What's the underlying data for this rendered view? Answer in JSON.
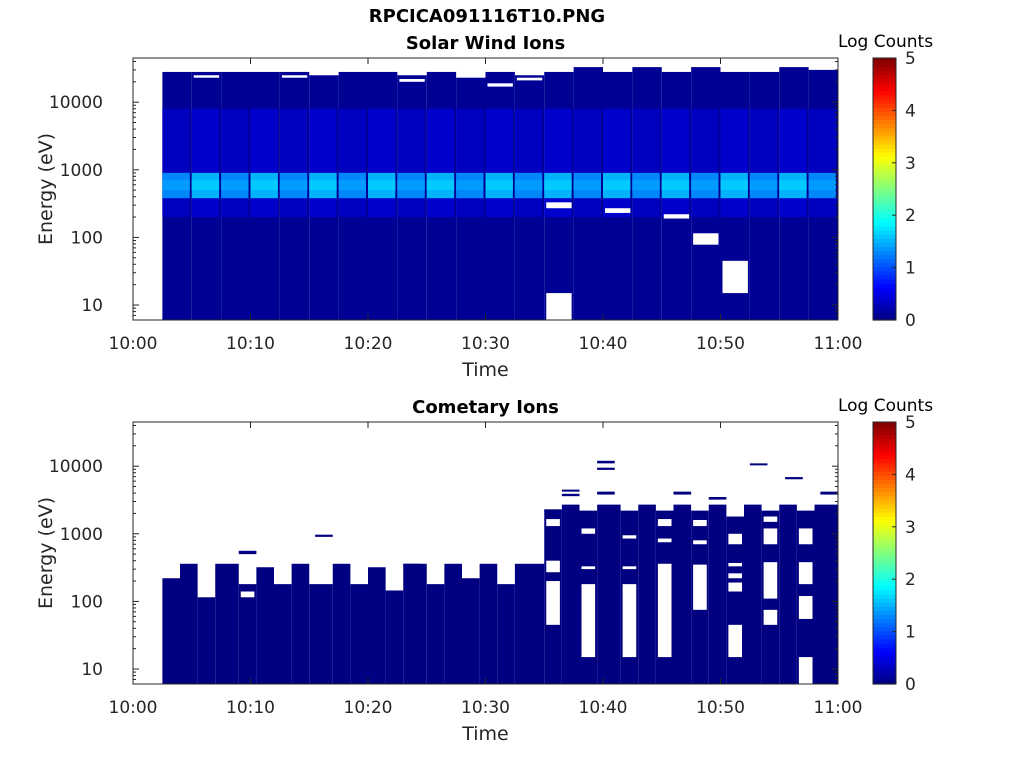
{
  "figure": {
    "title": "RPCICA091116T10.PNG"
  },
  "chart_data": [
    {
      "type": "heatmap",
      "title": "Solar Wind Ions",
      "xlabel": "Time",
      "ylabel": "Energy (eV)",
      "y_scale": "log",
      "x_ticks": [
        "10:00",
        "10:10",
        "10:20",
        "10:30",
        "10:40",
        "10:50",
        "11:00"
      ],
      "y_ticks": [
        "10",
        "100",
        "1000",
        "10000"
      ],
      "xlim": [
        "10:00",
        "11:00"
      ],
      "ylim": [
        6,
        45000
      ],
      "colorbar": {
        "label": "Log Counts",
        "min": 0,
        "max": 5,
        "ticks": [
          "0",
          "1",
          "2",
          "3",
          "4",
          "5"
        ],
        "colormap": "jet"
      },
      "data_time_range": [
        "10:02:30",
        "11:00"
      ],
      "dominant_level": 0.1,
      "columns": [
        {
          "t": [
            "10:02:30",
            "10:05:00"
          ],
          "top": 28000,
          "gaps": []
        },
        {
          "t": [
            "10:05:00",
            "10:07:30"
          ],
          "top": 28000,
          "gaps": [
            [
              23000,
              25000
            ]
          ]
        },
        {
          "t": [
            "10:07:30",
            "10:10:00"
          ],
          "top": 28000,
          "gaps": []
        },
        {
          "t": [
            "10:10:00",
            "10:12:30"
          ],
          "top": 28000,
          "gaps": []
        },
        {
          "t": [
            "10:12:30",
            "10:15:00"
          ],
          "top": 28000,
          "gaps": [
            [
              23000,
              25000
            ]
          ]
        },
        {
          "t": [
            "10:15:00",
            "10:17:30"
          ],
          "top": 25000,
          "gaps": []
        },
        {
          "t": [
            "10:17:30",
            "10:20:00"
          ],
          "top": 28000,
          "gaps": []
        },
        {
          "t": [
            "10:20:00",
            "10:22:30"
          ],
          "top": 28000,
          "gaps": []
        },
        {
          "t": [
            "10:22:30",
            "10:25:00"
          ],
          "top": 25000,
          "gaps": [
            [
              20000,
              22000
            ]
          ]
        },
        {
          "t": [
            "10:25:00",
            "10:27:30"
          ],
          "top": 28000,
          "gaps": []
        },
        {
          "t": [
            "10:27:30",
            "10:30:00"
          ],
          "top": 23000,
          "gaps": []
        },
        {
          "t": [
            "10:30:00",
            "10:32:30"
          ],
          "top": 28000,
          "gaps": [
            [
              17000,
              19000
            ]
          ]
        },
        {
          "t": [
            "10:32:30",
            "10:35:00"
          ],
          "top": 25000,
          "gaps": [
            [
              21000,
              23000
            ]
          ]
        },
        {
          "t": [
            "10:35:00",
            "10:37:30"
          ],
          "top": 28000,
          "gaps": [
            [
              270,
              330
            ],
            [
              6,
              15
            ]
          ]
        },
        {
          "t": [
            "10:37:30",
            "10:40:00"
          ],
          "top": 33000,
          "gaps": []
        },
        {
          "t": [
            "10:40:00",
            "10:42:30"
          ],
          "top": 28000,
          "gaps": [
            [
              230,
              270
            ]
          ]
        },
        {
          "t": [
            "10:42:30",
            "10:45:00"
          ],
          "top": 33000,
          "gaps": []
        },
        {
          "t": [
            "10:45:00",
            "10:47:30"
          ],
          "top": 28000,
          "gaps": [
            [
              190,
              220
            ]
          ]
        },
        {
          "t": [
            "10:47:30",
            "10:50:00"
          ],
          "top": 33000,
          "gaps": [
            [
              78,
              115
            ]
          ]
        },
        {
          "t": [
            "10:50:00",
            "10:52:30"
          ],
          "top": 28000,
          "gaps": [
            [
              15,
              45
            ]
          ]
        },
        {
          "t": [
            "10:52:30",
            "10:55:00"
          ],
          "top": 28000,
          "gaps": []
        },
        {
          "t": [
            "10:55:00",
            "10:57:30"
          ],
          "top": 33000,
          "gaps": []
        },
        {
          "t": [
            "10:57:30",
            "11:00:00"
          ],
          "top": 30000,
          "gaps": []
        }
      ],
      "bands": [
        {
          "e_range": [
            380,
            900
          ],
          "level": 1.6
        },
        {
          "e_range": [
            500,
            700
          ],
          "level": 2.0
        },
        {
          "e_range": [
            200,
            8000
          ],
          "level": 0.4
        }
      ]
    },
    {
      "type": "heatmap",
      "title": "Cometary Ions",
      "xlabel": "Time",
      "ylabel": "Energy (eV)",
      "y_scale": "log",
      "x_ticks": [
        "10:00",
        "10:10",
        "10:20",
        "10:30",
        "10:40",
        "10:50",
        "11:00"
      ],
      "y_ticks": [
        "10",
        "100",
        "1000",
        "10000"
      ],
      "xlim": [
        "10:00",
        "11:00"
      ],
      "ylim": [
        6,
        45000
      ],
      "colorbar": {
        "label": "Log Counts",
        "min": 0,
        "max": 5,
        "ticks": [
          "0",
          "1",
          "2",
          "3",
          "4",
          "5"
        ],
        "colormap": "jet"
      },
      "data_time_range": [
        "10:02:30",
        "11:00"
      ],
      "dominant_level": 0.0,
      "columns": [
        {
          "t": [
            "10:02:30",
            "10:04:00"
          ],
          "top": 220,
          "gaps": []
        },
        {
          "t": [
            "10:04:00",
            "10:05:30"
          ],
          "top": 360,
          "gaps": []
        },
        {
          "t": [
            "10:05:30",
            "10:07:00"
          ],
          "top": 115,
          "gaps": []
        },
        {
          "t": [
            "10:07:00",
            "10:09:00"
          ],
          "top": 360,
          "gaps": []
        },
        {
          "t": [
            "10:09:00",
            "10:10:30"
          ],
          "top": 180,
          "gaps": [
            [
              115,
              140
            ]
          ]
        },
        {
          "t": [
            "10:10:30",
            "10:12:00"
          ],
          "top": 320,
          "gaps": []
        },
        {
          "t": [
            "10:12:00",
            "10:13:30"
          ],
          "top": 180,
          "gaps": []
        },
        {
          "t": [
            "10:13:30",
            "10:15:00"
          ],
          "top": 360,
          "gaps": []
        },
        {
          "t": [
            "10:15:00",
            "10:17:00"
          ],
          "top": 180,
          "gaps": []
        },
        {
          "t": [
            "10:17:00",
            "10:18:30"
          ],
          "top": 360,
          "gaps": []
        },
        {
          "t": [
            "10:18:30",
            "10:20:00"
          ],
          "top": 180,
          "gaps": []
        },
        {
          "t": [
            "10:20:00",
            "10:21:30"
          ],
          "top": 320,
          "gaps": []
        },
        {
          "t": [
            "10:21:30",
            "10:23:00"
          ],
          "top": 145,
          "gaps": []
        },
        {
          "t": [
            "10:23:00",
            "10:25:00"
          ],
          "top": 360,
          "gaps": []
        },
        {
          "t": [
            "10:25:00",
            "10:26:30"
          ],
          "top": 180,
          "gaps": []
        },
        {
          "t": [
            "10:26:30",
            "10:28:00"
          ],
          "top": 360,
          "gaps": []
        },
        {
          "t": [
            "10:28:00",
            "10:29:30"
          ],
          "top": 220,
          "gaps": []
        },
        {
          "t": [
            "10:29:30",
            "10:31:00"
          ],
          "top": 360,
          "gaps": []
        },
        {
          "t": [
            "10:31:00",
            "10:32:30"
          ],
          "top": 180,
          "gaps": []
        },
        {
          "t": [
            "10:32:30",
            "10:35:00"
          ],
          "top": 360,
          "gaps": []
        },
        {
          "t": [
            "10:35:00",
            "10:36:30"
          ],
          "top": 2200,
          "gaps": [
            [
              45,
              200
            ],
            [
              270,
              400
            ],
            [
              1300,
              1650
            ]
          ]
        },
        {
          "t": [
            "10:36:30",
            "10:38:00"
          ],
          "top": 2700,
          "gaps": []
        },
        {
          "t": [
            "10:38:00",
            "10:39:30"
          ],
          "top": 2200,
          "gaps": [
            [
              15,
              180
            ],
            [
              300,
              330
            ],
            [
              1000,
              1200
            ]
          ]
        },
        {
          "t": [
            "10:39:30",
            "10:41:30"
          ],
          "top": 2700,
          "gaps": []
        },
        {
          "t": [
            "10:41:30",
            "10:43:00"
          ],
          "top": 2200,
          "gaps": [
            [
              15,
              180
            ],
            [
              300,
              330
            ],
            [
              850,
              950
            ]
          ]
        },
        {
          "t": [
            "10:43:00",
            "10:44:30"
          ],
          "top": 2700,
          "gaps": []
        },
        {
          "t": [
            "10:44:30",
            "10:46:00"
          ],
          "top": 2200,
          "gaps": [
            [
              15,
              360
            ],
            [
              750,
              850
            ],
            [
              1300,
              1650
            ]
          ]
        },
        {
          "t": [
            "10:46:00",
            "10:47:30"
          ],
          "top": 2700,
          "gaps": []
        },
        {
          "t": [
            "10:47:30",
            "10:49:00"
          ],
          "top": 2200,
          "gaps": [
            [
              75,
              350
            ],
            [
              700,
              800
            ],
            [
              1300,
              1600
            ]
          ]
        },
        {
          "t": [
            "10:49:00",
            "10:50:30"
          ],
          "top": 2700,
          "gaps": []
        },
        {
          "t": [
            "10:50:30",
            "10:52:00"
          ],
          "top": 1800,
          "gaps": [
            [
              15,
              45
            ],
            [
              140,
              190
            ],
            [
              220,
              260
            ],
            [
              330,
              370
            ],
            [
              700,
              1000
            ]
          ]
        },
        {
          "t": [
            "10:52:00",
            "10:53:30"
          ],
          "top": 2700,
          "gaps": []
        },
        {
          "t": [
            "10:53:30",
            "10:55:00"
          ],
          "top": 2200,
          "gaps": [
            [
              45,
              75
            ],
            [
              110,
              380
            ],
            [
              700,
              1200
            ],
            [
              1500,
              1800
            ]
          ]
        },
        {
          "t": [
            "10:55:00",
            "10:56:30"
          ],
          "top": 2700,
          "gaps": []
        },
        {
          "t": [
            "10:56:30",
            "10:58:00"
          ],
          "top": 2200,
          "gaps": [
            [
              6,
              15
            ],
            [
              55,
              120
            ],
            [
              180,
              380
            ],
            [
              700,
              1200
            ]
          ]
        },
        {
          "t": [
            "10:58:00",
            "11:00:00"
          ],
          "top": 2700,
          "gaps": []
        }
      ],
      "isolated": [
        {
          "t": [
            "10:09:00",
            "10:10:30"
          ],
          "e_range": [
            500,
            560
          ]
        },
        {
          "t": [
            "10:15:30",
            "10:17:00"
          ],
          "e_range": [
            900,
            970
          ]
        },
        {
          "t": [
            "10:23:00",
            "10:24:30"
          ],
          "e_range": [
            330,
            360
          ]
        },
        {
          "t": [
            "10:35:00",
            "10:36:30"
          ],
          "e_range": [
            2100,
            2300
          ]
        },
        {
          "t": [
            "10:36:30",
            "10:38:00"
          ],
          "e_range": [
            3600,
            3900
          ]
        },
        {
          "t": [
            "10:36:30",
            "10:38:00"
          ],
          "e_range": [
            4200,
            4500
          ]
        },
        {
          "t": [
            "10:39:30",
            "10:41:00"
          ],
          "e_range": [
            11000,
            12000
          ]
        },
        {
          "t": [
            "10:39:30",
            "10:41:00"
          ],
          "e_range": [
            8800,
            9500
          ]
        },
        {
          "t": [
            "10:39:30",
            "10:41:00"
          ],
          "e_range": [
            3800,
            4200
          ]
        },
        {
          "t": [
            "10:46:00",
            "10:47:30"
          ],
          "e_range": [
            3800,
            4200
          ]
        },
        {
          "t": [
            "10:49:00",
            "10:50:30"
          ],
          "e_range": [
            3200,
            3500
          ]
        },
        {
          "t": [
            "10:52:30",
            "10:54:00"
          ],
          "e_range": [
            10300,
            11000
          ]
        },
        {
          "t": [
            "10:55:30",
            "10:57:00"
          ],
          "e_range": [
            6400,
            6900
          ]
        },
        {
          "t": [
            "10:58:30",
            "11:00:00"
          ],
          "e_range": [
            3800,
            4200
          ]
        }
      ],
      "bands": []
    }
  ]
}
